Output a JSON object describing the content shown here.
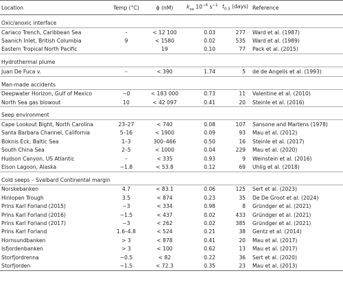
{
  "table": {
    "header": {
      "location": "Location",
      "temp": "Temp (°C)",
      "phi": "ϕ (nM)",
      "kox": [
        "k",
        "ox",
        " 10",
        "−6",
        " s",
        "−1"
      ],
      "t05": [
        "t",
        "0.5",
        " (days)"
      ],
      "reference": "Reference"
    },
    "sections": [
      {
        "title": "Oxic/anoxic interface",
        "rows": [
          [
            "Cariaco Trench, Caribbean Sea",
            "–",
            "< 12 100",
            "0.03",
            "277",
            "Ward et al. (1987)"
          ],
          [
            "Saanich Inlet, British Columbia",
            "9",
            "< 1580",
            "0.02",
            "535",
            "Ward et al. (1989)"
          ],
          [
            "Eastern Tropical North Pacific",
            null,
            "19",
            "0.10",
            "77",
            "Pack et al. (2015)"
          ]
        ]
      },
      {
        "title": "Hydrothermal plume",
        "rows": [
          [
            "Juan De Fuca v.",
            "–",
            "< 390",
            "1.74",
            "5",
            "de de Angelis et al. (1993)"
          ]
        ]
      },
      {
        "title": "Man-made accidents",
        "rows": [
          [
            "Deepwater Horizon, Gulf of Mexico",
            "∼0",
            "< 183 000",
            "0.73",
            "11",
            "Valentine et al. (2010)"
          ],
          [
            "North Sea gas blowout",
            "10",
            "< 42 097",
            "0.41",
            "20",
            "Steinle et al. (2016)"
          ]
        ]
      },
      {
        "title": "Seep environment",
        "rows": [
          [
            "Cape Lookout Bight, North Carolina",
            "23–27",
            "< 740",
            "0.08",
            "107",
            "Sansone and Martens (1978)"
          ],
          [
            "Santa Barbara Channel, California",
            "5–16",
            "< 1900",
            "0.09",
            "93",
            "Mau et al. (2012)"
          ],
          [
            "Boknis Eck, Baltic Sea",
            "1–3",
            "300–466",
            "0.50",
            "16",
            "Steinle et al. (2017)"
          ],
          [
            "South China Sea",
            "2–5",
            "< 1000",
            "0.04",
            "229",
            "Mau et al. (2020)"
          ],
          [
            "Hudson Canyon, US Atlantic",
            "–",
            "< 335",
            "0.93",
            "9",
            "Weinstein et al. (2016)"
          ],
          [
            "Elson Lagoon, Alaska",
            "−1.8",
            "< 53.8",
            "0.12",
            "69",
            "Uhlig et al. (2018)"
          ]
        ]
      },
      {
        "title": "Cold seeps – Svalbard Continental margin",
        "rows": [
          [
            "Norskebanken",
            "4.7",
            "< 83.1",
            "0.06",
            "125",
            "Sert et al. (2023)"
          ],
          [
            "Hinlopen Trough",
            "3.5",
            "< 874",
            "0.23",
            "35",
            "De De Groot et al. (2024)"
          ],
          [
            "Prins Karl Forland (2015)",
            "∼3",
            "< 334",
            "0.98",
            "8",
            "Gründger et al. (2021)"
          ],
          [
            "Prins Karl Forland (2016)",
            "∼1.5",
            "< 437",
            "0.02",
            "433",
            "Gründger et al. (2021)"
          ],
          [
            "Prins Karl Forland (2017)",
            "∼3",
            "< 262",
            "0.02",
            "385",
            "Gründger et al. (2021)"
          ],
          [
            "Prins Karl Forland",
            "1.6–4.8",
            "< 524",
            "0.21",
            "38",
            "Gentz et al. (2014)"
          ],
          [
            "Hornsundbanken",
            "> 3",
            "< 878",
            "0.41",
            "20",
            "Mau et al. (2017)"
          ],
          [
            "Isfjordenbanken",
            "> 3",
            "< 100",
            "0.62",
            "13",
            "Mau et al. (2017)"
          ],
          [
            "Storfjordrenna",
            "−0.5",
            "< 82",
            "0.22",
            "36",
            "Sert et al. (2020)"
          ],
          [
            "Storfjorden",
            "−1.5",
            "< 72.3",
            "0.35",
            "23",
            "Mau et al. (2013)"
          ]
        ]
      }
    ]
  }
}
